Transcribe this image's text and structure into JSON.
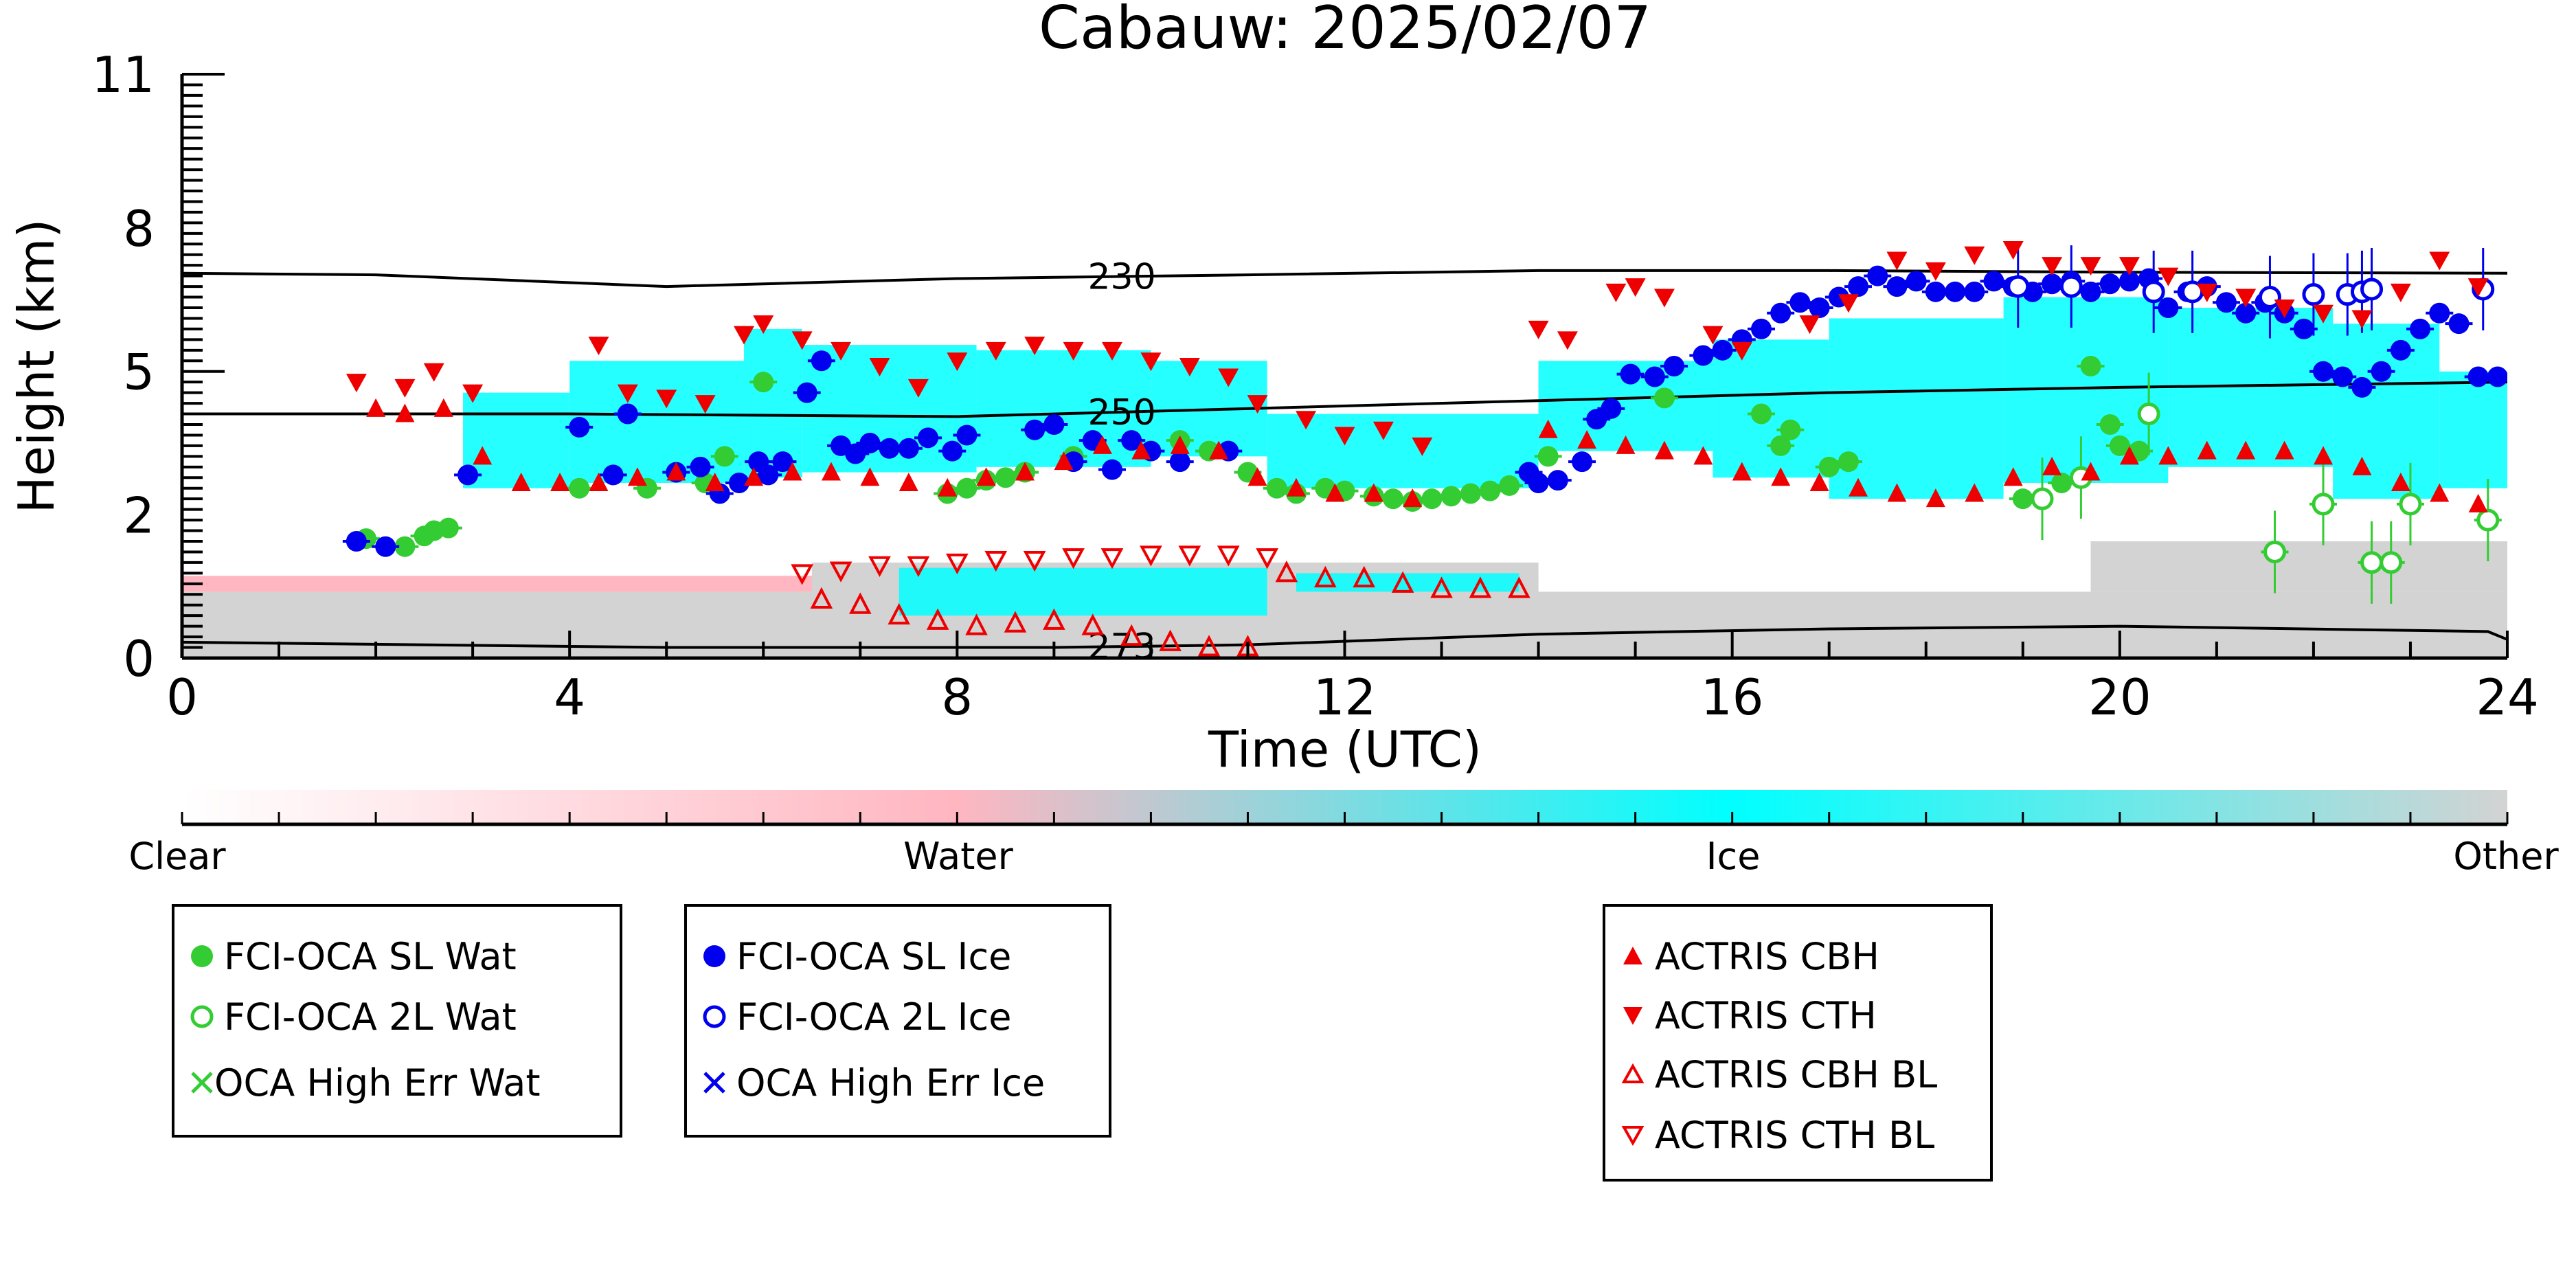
{
  "chart_data": {
    "type": "scatter",
    "title": "Cabauw: 2025/02/07",
    "xlabel": "Time (UTC)",
    "ylabel": "Height (km)",
    "xlim": [
      0,
      24
    ],
    "ylim": [
      0,
      11
    ],
    "xticks": [
      "0",
      "4",
      "8",
      "12",
      "16",
      "20",
      "24"
    ],
    "yticks": [
      "0",
      "2",
      "5",
      "8",
      "11"
    ],
    "ytick_values": [
      0,
      2.7,
      5.4,
      8.1,
      11
    ],
    "grid": false,
    "colorbar": {
      "labels": [
        "Clear",
        "Water",
        "Ice",
        "Other"
      ],
      "colors": [
        "#ffffff",
        "#ffb6c1",
        "#00ffff",
        "#d3d3d3"
      ]
    },
    "isotherms": [
      {
        "label": "230",
        "x": [
          0,
          2,
          5,
          8,
          11,
          14,
          17,
          20,
          24
        ],
        "y": [
          7.25,
          7.22,
          7.0,
          7.15,
          7.22,
          7.3,
          7.3,
          7.27,
          7.25
        ]
      },
      {
        "label": "250",
        "x": [
          0,
          4,
          8,
          11,
          14,
          17,
          20,
          22,
          24
        ],
        "y": [
          4.6,
          4.6,
          4.55,
          4.7,
          4.85,
          5.0,
          5.1,
          5.15,
          5.2
        ]
      },
      {
        "label": "273",
        "x": [
          0,
          5,
          9,
          11,
          14,
          17,
          20,
          23.8,
          24
        ],
        "y": [
          0.3,
          0.2,
          0.2,
          0.25,
          0.45,
          0.55,
          0.6,
          0.5,
          0.35
        ]
      }
    ],
    "series": [
      {
        "name": "FCI-OCA SL Wat",
        "marker": "filled-circle",
        "color": "#33cc33",
        "x": [
          1.9,
          2.3,
          2.5,
          2.6,
          2.75,
          4.1,
          4.8,
          5.4,
          5.6,
          6.0,
          7.9,
          8.1,
          8.3,
          8.5,
          8.7,
          9.2,
          10.3,
          10.6,
          11.0,
          11.3,
          11.5,
          11.8,
          12.0,
          12.3,
          12.5,
          12.7,
          12.9,
          13.1,
          13.3,
          13.5,
          13.7,
          14.1,
          15.3,
          16.3,
          16.5,
          16.6,
          17.0,
          17.2,
          19.0,
          19.4,
          19.7,
          19.9,
          20.0,
          20.2,
          21.6,
          22.1,
          22.6,
          22.8,
          23.0,
          23.8
        ],
        "y": [
          2.25,
          2.1,
          2.3,
          2.4,
          2.45,
          3.2,
          3.2,
          3.3,
          3.8,
          5.2,
          3.1,
          3.2,
          3.35,
          3.4,
          3.5,
          3.8,
          4.1,
          3.9,
          3.5,
          3.2,
          3.1,
          3.2,
          3.15,
          3.05,
          3.0,
          2.95,
          3.0,
          3.05,
          3.1,
          3.15,
          3.25,
          3.8,
          4.9,
          4.6,
          4.0,
          4.3,
          3.6,
          3.7,
          3.0,
          3.3,
          5.5,
          4.4,
          4.0,
          3.9,
          2.0,
          2.9,
          1.8,
          1.8,
          2.9,
          2.6
        ],
        "filled": true
      },
      {
        "name": "FCI-OCA 2L Wat",
        "marker": "open-circle",
        "color": "#33cc33",
        "x": [
          19.2,
          19.6,
          20.3,
          21.6,
          22.1,
          22.6,
          22.8,
          23.0,
          23.8
        ],
        "y": [
          3.0,
          3.4,
          4.6,
          2.0,
          2.9,
          1.8,
          1.8,
          2.9,
          2.6
        ]
      },
      {
        "name": "OCA High Err Wat",
        "marker": "x",
        "color": "#33cc33",
        "x": [],
        "y": []
      },
      {
        "name": "FCI-OCA SL Ice",
        "marker": "filled-circle",
        "color": "#0000ee",
        "x": [
          1.8,
          2.1,
          2.95,
          4.1,
          4.45,
          4.6,
          5.1,
          5.35,
          5.55,
          5.75,
          5.95,
          6.05,
          6.2,
          6.45,
          6.6,
          6.8,
          6.95,
          7.1,
          7.3,
          7.5,
          7.7,
          7.95,
          8.1,
          8.8,
          9.0,
          9.2,
          9.4,
          9.6,
          9.8,
          10.0,
          10.3,
          10.8,
          13.9,
          14.0,
          14.2,
          14.45,
          14.6,
          14.75,
          14.95,
          15.2,
          15.4,
          15.7,
          15.9,
          16.1,
          16.3,
          16.5,
          16.7,
          16.9,
          17.1,
          17.3,
          17.5,
          17.7,
          17.9,
          18.1,
          18.3,
          18.5,
          18.7,
          18.9,
          19.1,
          19.3,
          19.5,
          19.7,
          19.9,
          20.1,
          20.3,
          20.5,
          20.7,
          20.9,
          21.1,
          21.3,
          21.5,
          21.7,
          21.9,
          22.1,
          22.3,
          22.5,
          22.7,
          22.9,
          23.1,
          23.3,
          23.5,
          23.7,
          23.9
        ],
        "y": [
          2.2,
          2.1,
          3.45,
          4.35,
          3.45,
          4.6,
          3.5,
          3.6,
          3.1,
          3.3,
          3.7,
          3.45,
          3.7,
          5.0,
          5.6,
          4.0,
          3.85,
          4.05,
          3.95,
          3.95,
          4.15,
          3.9,
          4.2,
          4.3,
          4.4,
          3.7,
          4.1,
          3.55,
          4.1,
          3.9,
          3.7,
          3.9,
          3.5,
          3.3,
          3.35,
          3.7,
          4.5,
          4.7,
          5.35,
          5.3,
          5.5,
          5.7,
          5.8,
          6.0,
          6.2,
          6.5,
          6.7,
          6.6,
          6.8,
          7.0,
          7.2,
          7.0,
          7.1,
          6.9,
          6.9,
          6.9,
          7.1,
          7.0,
          6.9,
          7.05,
          7.1,
          6.9,
          7.05,
          7.1,
          7.15,
          6.6,
          6.9,
          7.0,
          6.7,
          6.5,
          6.7,
          6.5,
          6.2,
          5.4,
          5.3,
          5.1,
          5.4,
          5.8,
          6.2,
          6.5,
          6.3,
          5.3,
          5.3
        ]
      },
      {
        "name": "FCI-OCA 2L Ice",
        "marker": "open-circle",
        "color": "#0000ee",
        "x": [
          18.95,
          19.5,
          20.35,
          20.75,
          21.55,
          22.0,
          22.35,
          22.5,
          22.6,
          23.75
        ],
        "y": [
          7.0,
          7.0,
          6.9,
          6.9,
          6.8,
          6.85,
          6.85,
          6.9,
          6.95,
          6.95
        ]
      },
      {
        "name": "OCA High Err Ice",
        "marker": "x",
        "color": "#0000ee",
        "x": [],
        "y": []
      },
      {
        "name": "ACTRIS CBH",
        "marker": "filled-triangle-up",
        "color": "#ee0000",
        "x": [
          2.0,
          2.3,
          2.7,
          3.1,
          3.5,
          3.9,
          4.3,
          4.7,
          5.1,
          5.5,
          5.9,
          6.3,
          6.7,
          7.1,
          7.5,
          7.9,
          8.3,
          8.7,
          9.1,
          9.5,
          9.9,
          10.3,
          10.7,
          11.1,
          11.5,
          11.9,
          12.3,
          12.7,
          14.1,
          14.5,
          14.9,
          15.3,
          15.7,
          16.1,
          16.5,
          16.9,
          17.3,
          17.7,
          18.1,
          18.5,
          18.9,
          19.3,
          19.7,
          20.1,
          20.5,
          20.9,
          21.3,
          21.7,
          22.1,
          22.5,
          22.9,
          23.3,
          23.7
        ],
        "y": [
          4.7,
          4.6,
          4.7,
          3.8,
          3.3,
          3.3,
          3.3,
          3.4,
          3.5,
          3.3,
          3.4,
          3.5,
          3.5,
          3.4,
          3.3,
          3.2,
          3.4,
          3.5,
          3.7,
          4.0,
          3.9,
          4.0,
          3.9,
          3.4,
          3.2,
          3.1,
          3.1,
          3.0,
          4.3,
          4.1,
          4.0,
          3.9,
          3.8,
          3.5,
          3.4,
          3.3,
          3.2,
          3.1,
          3.0,
          3.1,
          3.4,
          3.6,
          3.5,
          3.8,
          3.8,
          3.9,
          3.9,
          3.9,
          3.8,
          3.6,
          3.3,
          3.1,
          2.9
        ]
      },
      {
        "name": "ACTRIS CTH",
        "marker": "filled-triangle-down",
        "color": "#ee0000",
        "x": [
          1.8,
          2.3,
          2.6,
          3.0,
          4.3,
          4.6,
          5.0,
          5.4,
          5.8,
          6.0,
          6.4,
          6.8,
          7.2,
          7.6,
          8.0,
          8.4,
          8.8,
          9.2,
          9.6,
          10.0,
          10.4,
          10.8,
          11.1,
          11.6,
          12.0,
          12.4,
          12.8,
          14.0,
          14.3,
          14.8,
          15.0,
          15.3,
          15.8,
          16.1,
          16.8,
          17.2,
          17.7,
          18.1,
          18.5,
          18.9,
          19.3,
          19.7,
          20.1,
          20.5,
          20.9,
          21.3,
          21.7,
          22.1,
          22.5,
          22.9,
          23.3,
          23.7
        ],
        "y": [
          5.2,
          5.1,
          5.4,
          5.0,
          5.9,
          5.0,
          4.9,
          4.8,
          6.1,
          6.3,
          6.0,
          5.8,
          5.5,
          5.1,
          5.6,
          5.8,
          5.9,
          5.8,
          5.8,
          5.6,
          5.5,
          5.3,
          4.8,
          4.5,
          4.2,
          4.3,
          4.0,
          6.2,
          6.0,
          6.9,
          7.0,
          6.8,
          6.1,
          5.8,
          6.3,
          6.7,
          7.5,
          7.3,
          7.6,
          7.7,
          7.4,
          7.4,
          7.4,
          7.2,
          6.9,
          6.8,
          6.6,
          6.5,
          6.4,
          6.9,
          7.5,
          7.0
        ]
      },
      {
        "name": "ACTRIS CBH BL",
        "marker": "open-triangle-up",
        "color": "#ee0000",
        "x": [
          6.6,
          7.0,
          7.4,
          7.8,
          8.2,
          8.6,
          9.0,
          9.4,
          9.8,
          10.2,
          10.6,
          11.0,
          11.4,
          11.8,
          12.2,
          12.6,
          13.0,
          13.4,
          13.8
        ],
        "y": [
          1.1,
          1.0,
          0.8,
          0.7,
          0.6,
          0.65,
          0.7,
          0.6,
          0.4,
          0.3,
          0.2,
          0.2,
          1.6,
          1.5,
          1.5,
          1.4,
          1.3,
          1.3,
          1.3
        ]
      },
      {
        "name": "ACTRIS CTH BL",
        "marker": "open-triangle-down",
        "color": "#ee0000",
        "x": [
          6.4,
          6.8,
          7.2,
          7.6,
          8.0,
          8.4,
          8.8,
          9.2,
          9.6,
          10.0,
          10.4,
          10.8,
          11.2
        ],
        "y": [
          1.6,
          1.65,
          1.75,
          1.75,
          1.8,
          1.85,
          1.85,
          1.9,
          1.9,
          1.95,
          1.95,
          1.95,
          1.9
        ]
      }
    ]
  },
  "legends": [
    {
      "items": [
        {
          "label": "FCI-OCA SL Wat"
        },
        {
          "label": "FCI-OCA 2L Wat"
        },
        {
          "label": "OCA High Err Wat"
        }
      ]
    },
    {
      "items": [
        {
          "label": "FCI-OCA SL Ice"
        },
        {
          "label": "FCI-OCA 2L Ice"
        },
        {
          "label": "OCA High Err Ice"
        }
      ]
    },
    {
      "items": [
        {
          "label": "ACTRIS CBH"
        },
        {
          "label": "ACTRIS CTH"
        },
        {
          "label": "ACTRIS CBH BL"
        },
        {
          "label": "ACTRIS CTH BL"
        }
      ]
    }
  ]
}
